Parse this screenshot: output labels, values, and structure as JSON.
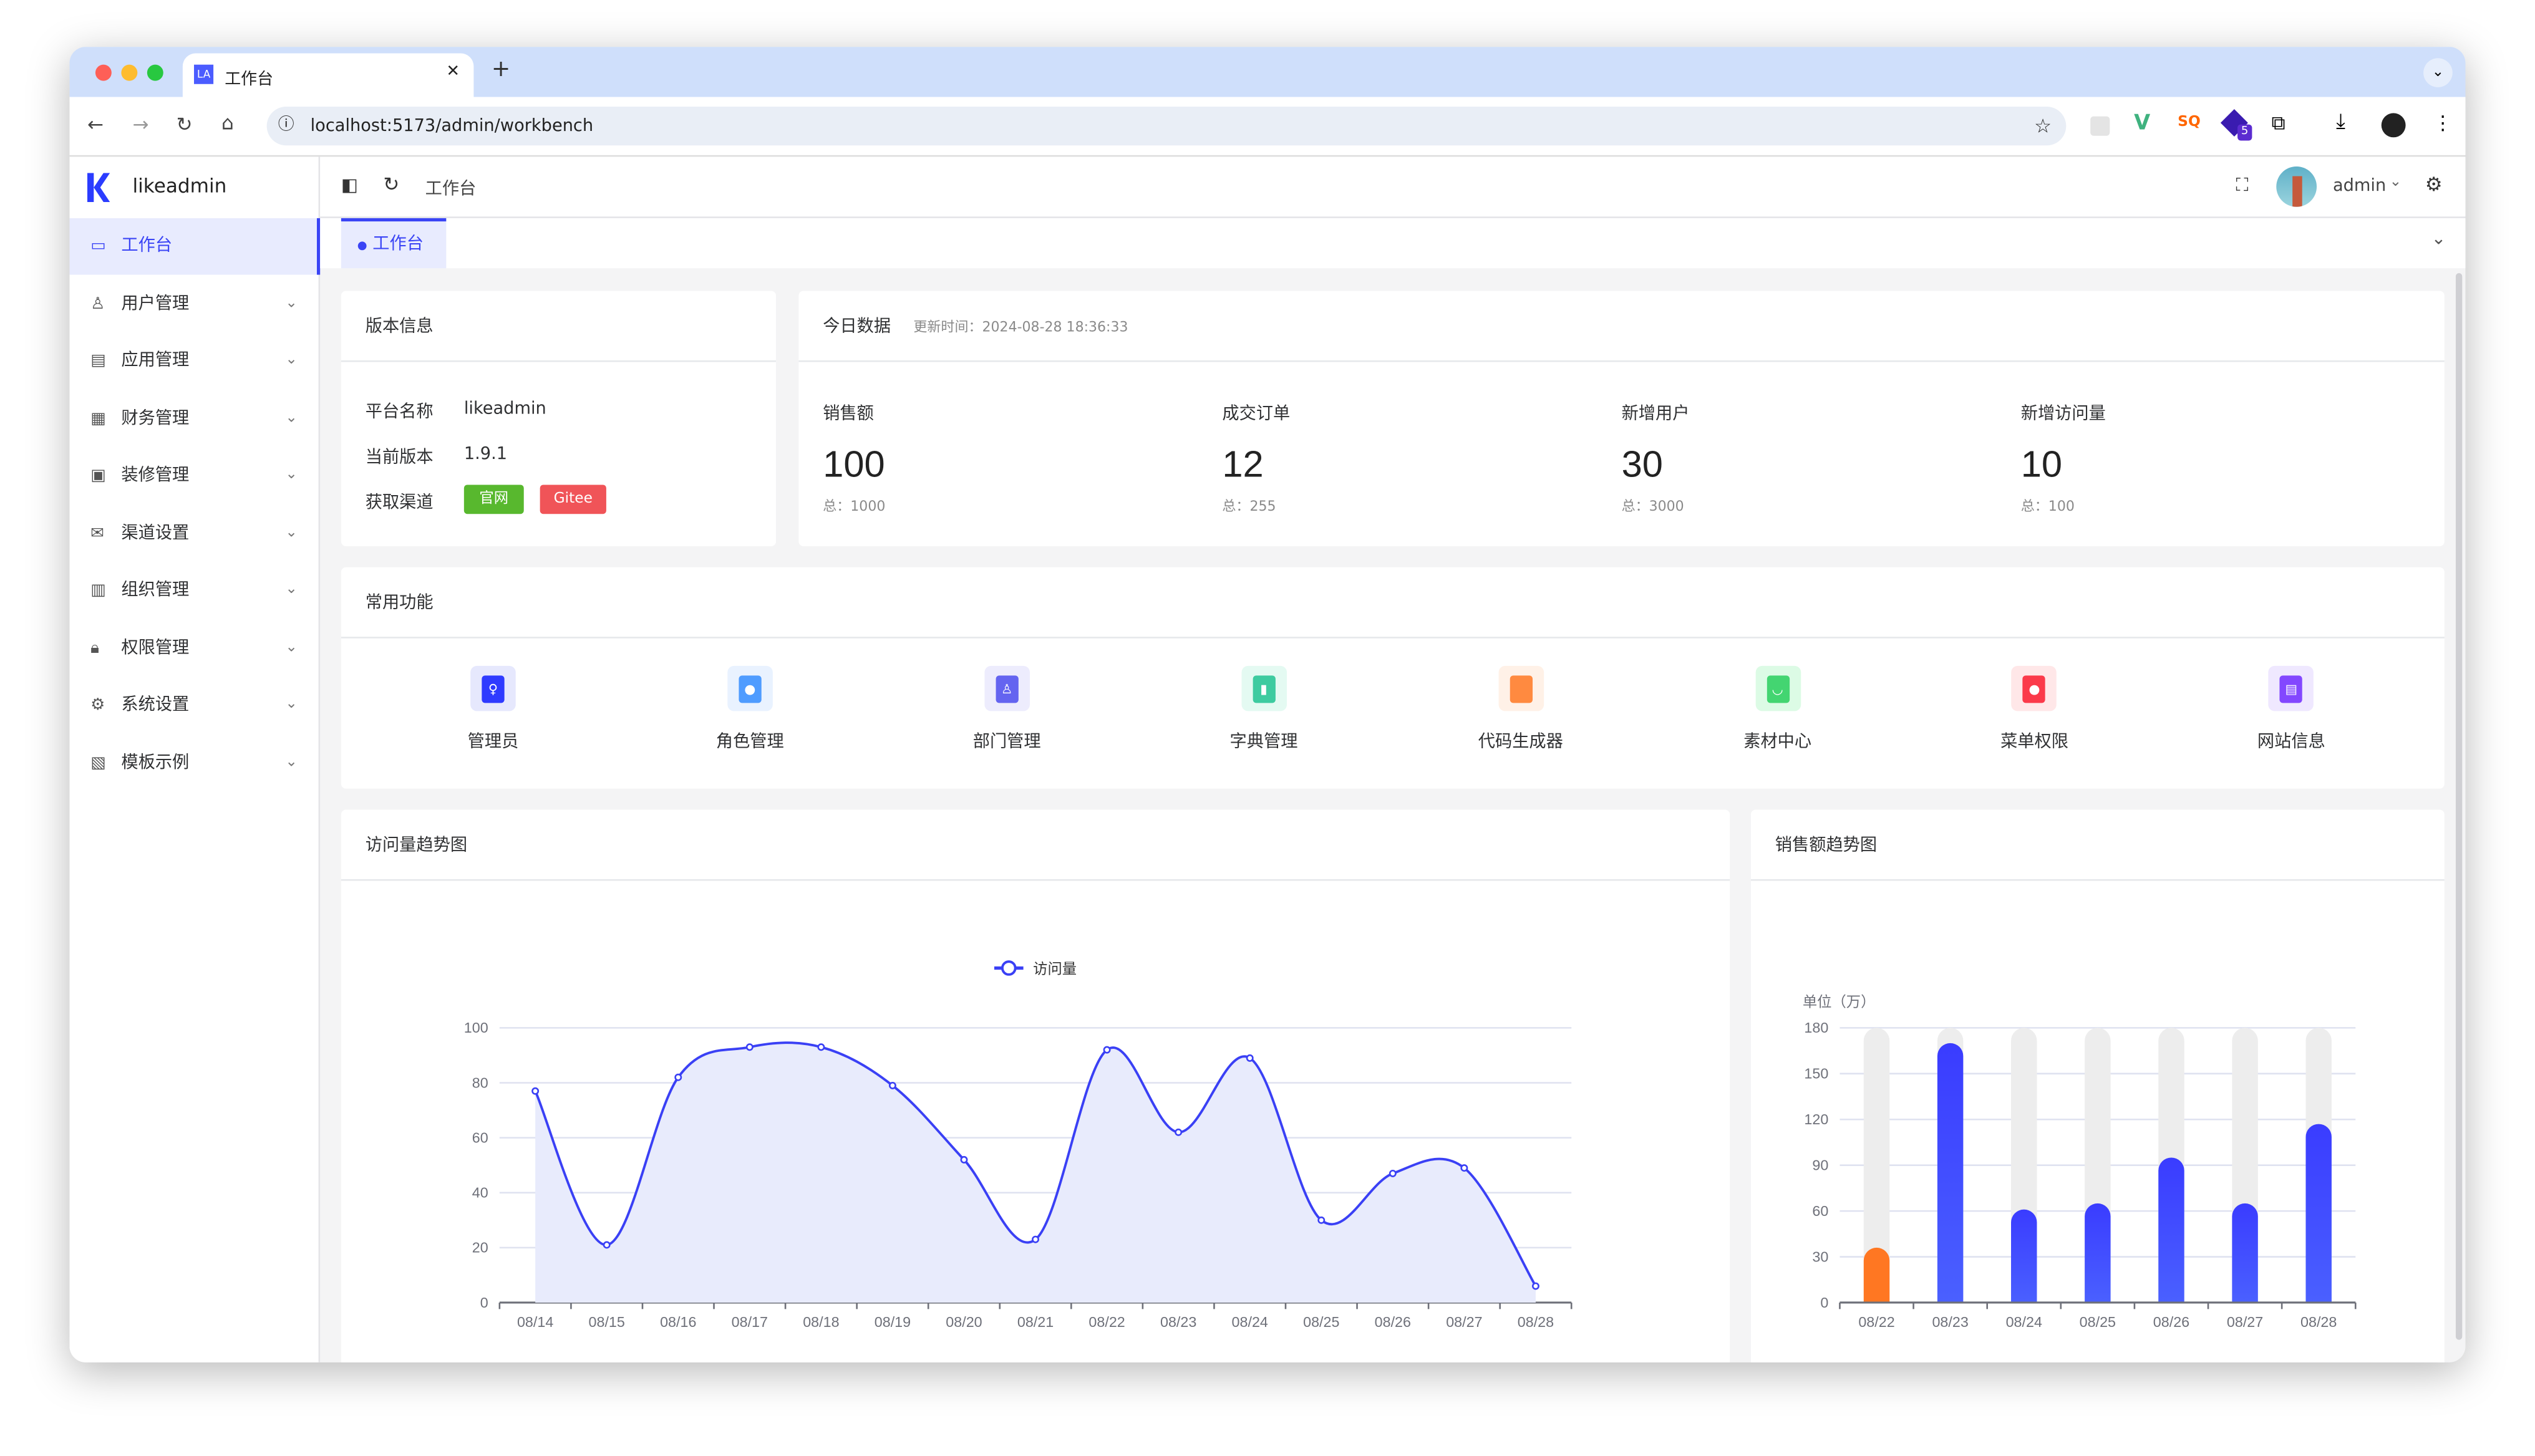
{
  "browser": {
    "tab_title": "工作台",
    "tab_favicon": "LA",
    "url": "localhost:5173/admin/workbench",
    "extension_badge": "5"
  },
  "app": {
    "name": "likeadmin",
    "breadcrumb": "工作台",
    "user": "admin",
    "active_tag": "工作台",
    "accent": "#3a44f5"
  },
  "sidebar": {
    "items": [
      {
        "label": "工作台",
        "icon": "monitor-icon",
        "active": true
      },
      {
        "label": "用户管理",
        "icon": "user-icon"
      },
      {
        "label": "应用管理",
        "icon": "app-icon"
      },
      {
        "label": "财务管理",
        "icon": "chart-icon"
      },
      {
        "label": "装修管理",
        "icon": "decoration-icon"
      },
      {
        "label": "渠道设置",
        "icon": "mail-icon"
      },
      {
        "label": "组织管理",
        "icon": "building-icon"
      },
      {
        "label": "权限管理",
        "icon": "lock-icon"
      },
      {
        "label": "系统设置",
        "icon": "gear-icon"
      },
      {
        "label": "模板示例",
        "icon": "template-icon"
      }
    ]
  },
  "version": {
    "title": "版本信息",
    "rows": [
      {
        "label": "平台名称",
        "value": "likeadmin"
      },
      {
        "label": "当前版本",
        "value": "1.9.1"
      }
    ],
    "channel_label": "获取渠道",
    "btn_official": "官网",
    "btn_gitee": "Gitee"
  },
  "today": {
    "title": "今日数据",
    "updated": "更新时间：2024-08-28 18:36:33",
    "stats": [
      {
        "label": "销售额",
        "value": "100",
        "total": "总：1000"
      },
      {
        "label": "成交订单",
        "value": "12",
        "total": "总：255"
      },
      {
        "label": "新增用户",
        "value": "30",
        "total": "总：3000"
      },
      {
        "label": "新增访问量",
        "value": "10",
        "total": "总：100"
      }
    ]
  },
  "shortcuts": {
    "title": "常用功能",
    "items": [
      {
        "label": "管理员",
        "color": "#2f3bff",
        "bg": "#e6e8fd"
      },
      {
        "label": "角色管理",
        "color": "#4f9cff",
        "bg": "#e9f2ff"
      },
      {
        "label": "部门管理",
        "color": "#6464f0",
        "bg": "#edecfd"
      },
      {
        "label": "字典管理",
        "color": "#3ecba0",
        "bg": "#e4faf2"
      },
      {
        "label": "代码生成器",
        "color": "#ff8a40",
        "bg": "#fff1e7"
      },
      {
        "label": "素材中心",
        "color": "#43d571",
        "bg": "#dcfbe5"
      },
      {
        "label": "菜单权限",
        "color": "#fb3a4a",
        "bg": "#ffe7e8"
      },
      {
        "label": "网站信息",
        "color": "#8347ff",
        "bg": "#efe8ff"
      }
    ]
  },
  "chart_data": [
    {
      "type": "area",
      "title": "访问量趋势图",
      "legend": "访问量",
      "legend_position": "top-center",
      "grid": true,
      "categories": [
        "08/14",
        "08/15",
        "08/16",
        "08/17",
        "08/18",
        "08/19",
        "08/20",
        "08/21",
        "08/22",
        "08/23",
        "08/24",
        "08/25",
        "08/26",
        "08/27",
        "08/28"
      ],
      "series": [
        {
          "name": "访问量",
          "values": [
            77,
            21,
            82,
            93,
            93,
            79,
            52,
            23,
            92,
            62,
            89,
            30,
            47,
            49,
            6
          ]
        }
      ],
      "ylim": [
        0,
        100
      ],
      "yticks": [
        "0",
        "20",
        "40",
        "60",
        "80",
        "100"
      ],
      "color": "#3a40f5",
      "fill": "#e8ebfc"
    },
    {
      "type": "bar",
      "title": "销售额趋势图",
      "ylabel": "单位（万）",
      "grid": true,
      "categories": [
        "08/22",
        "08/23",
        "08/24",
        "08/25",
        "08/26",
        "08/27",
        "08/28"
      ],
      "values": [
        36,
        170,
        61,
        65,
        95,
        65,
        117
      ],
      "ylim": [
        0,
        180
      ],
      "yticks": [
        "0",
        "30",
        "60",
        "90",
        "120",
        "150",
        "180"
      ],
      "color": "#3a40ff",
      "highlight_color": "#ff7722",
      "background_bar": "#ededed"
    }
  ]
}
